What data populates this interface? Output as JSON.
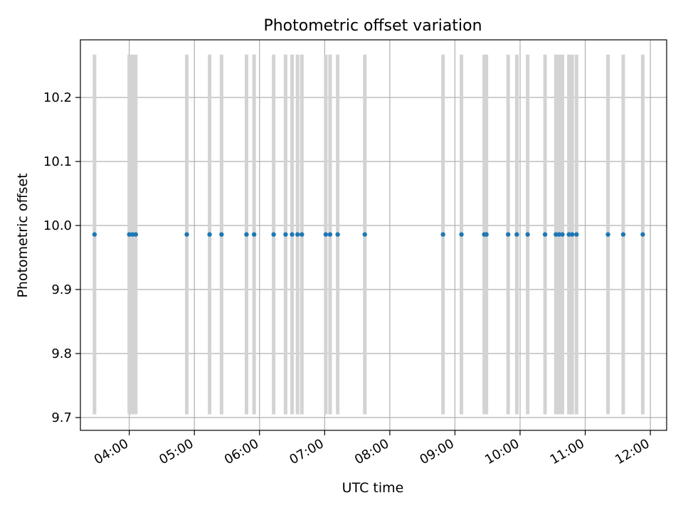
{
  "chart_data": {
    "type": "scatter",
    "title": "Photometric offset variation",
    "xlabel": "UTC time",
    "ylabel": "Photometric offset",
    "x_axis_type": "time",
    "xlim": [
      "03:15",
      "12:15"
    ],
    "ylim": [
      9.68,
      10.29
    ],
    "grid": true,
    "x_ticks": [
      "04:00",
      "05:00",
      "06:00",
      "07:00",
      "08:00",
      "09:00",
      "10:00",
      "11:00",
      "12:00"
    ],
    "y_ticks": [
      "9.7",
      "9.8",
      "9.9",
      "10.0",
      "10.1",
      "10.2"
    ],
    "series": [
      {
        "marker_color": "#1f77b4",
        "errorbar_color": "#d3d3d3",
        "error_range": [
          9.705,
          10.267
        ],
        "points": [
          {
            "x": "03:28",
            "y": 9.986
          },
          {
            "x": "04:00",
            "y": 9.986
          },
          {
            "x": "04:03",
            "y": 9.986
          },
          {
            "x": "04:06",
            "y": 9.986
          },
          {
            "x": "04:53",
            "y": 9.986
          },
          {
            "x": "05:14",
            "y": 9.986
          },
          {
            "x": "05:25",
            "y": 9.986
          },
          {
            "x": "05:48",
            "y": 9.986
          },
          {
            "x": "05:55",
            "y": 9.986
          },
          {
            "x": "06:13",
            "y": 9.986
          },
          {
            "x": "06:24",
            "y": 9.986
          },
          {
            "x": "06:30",
            "y": 9.986
          },
          {
            "x": "06:35",
            "y": 9.986
          },
          {
            "x": "06:39",
            "y": 9.986
          },
          {
            "x": "07:01",
            "y": 9.986
          },
          {
            "x": "07:05",
            "y": 9.986
          },
          {
            "x": "07:12",
            "y": 9.986
          },
          {
            "x": "07:37",
            "y": 9.986
          },
          {
            "x": "08:49",
            "y": 9.986
          },
          {
            "x": "09:06",
            "y": 9.986
          },
          {
            "x": "09:27",
            "y": 9.986
          },
          {
            "x": "09:29",
            "y": 9.986
          },
          {
            "x": "09:49",
            "y": 9.986
          },
          {
            "x": "09:57",
            "y": 9.986
          },
          {
            "x": "10:07",
            "y": 9.986
          },
          {
            "x": "10:23",
            "y": 9.986
          },
          {
            "x": "10:33",
            "y": 9.986
          },
          {
            "x": "10:36",
            "y": 9.986
          },
          {
            "x": "10:39",
            "y": 9.986
          },
          {
            "x": "10:45",
            "y": 9.986
          },
          {
            "x": "10:48",
            "y": 9.986
          },
          {
            "x": "10:52",
            "y": 9.986
          },
          {
            "x": "11:21",
            "y": 9.986
          },
          {
            "x": "11:35",
            "y": 9.986
          },
          {
            "x": "11:53",
            "y": 9.986
          }
        ]
      }
    ]
  }
}
